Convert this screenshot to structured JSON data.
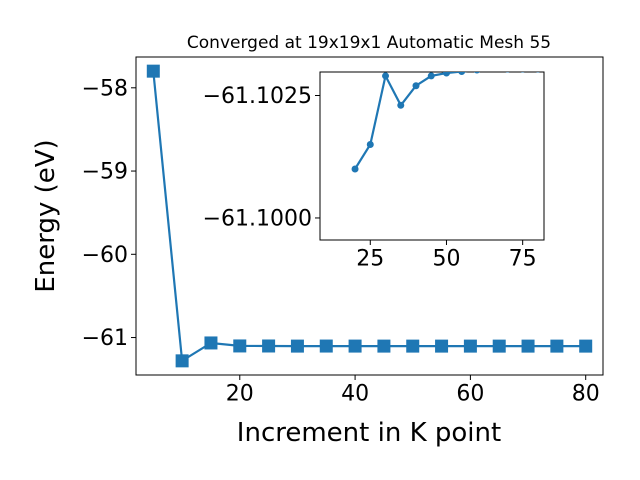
{
  "chart_data": [
    {
      "type": "line",
      "title": "Converged at 19x19x1 Automatic Mesh 55",
      "xlabel": "Increment in K point",
      "ylabel": "Energy (eV)",
      "xlim": [
        2,
        83
      ],
      "ylim": [
        -61.45,
        -57.63
      ],
      "xticks": [
        "20",
        "40",
        "60",
        "80"
      ],
      "yticks": [
        "−58",
        "−59",
        "−60",
        "−61"
      ],
      "xtick_values": [
        20,
        40,
        60,
        80
      ],
      "ytick_values": [
        -58,
        -59,
        -60,
        -61
      ],
      "grid": false,
      "marker": "square",
      "color": "#1f77b4",
      "series": [
        {
          "x": [
            5,
            10,
            15,
            20,
            25,
            30,
            35,
            40,
            45,
            50,
            55,
            60,
            65,
            70,
            75,
            80
          ],
          "values": [
            -57.8,
            -61.28,
            -61.065,
            -61.101,
            -61.1015,
            -61.1029,
            -61.1023,
            -61.1027,
            -61.1029,
            -61.10296,
            -61.10299,
            -61.10302,
            -61.10306,
            -61.10304,
            -61.10304,
            -61.10304
          ]
        }
      ]
    },
    {
      "type": "line",
      "title": "",
      "xlabel": "",
      "ylabel": "",
      "xlim": [
        8.5,
        82
      ],
      "ylim": [
        -61.09955,
        -61.10298
      ],
      "xticks": [
        "25",
        "50",
        "75"
      ],
      "yticks": [
        "−61.1025",
        "−61.1000"
      ],
      "xtick_values": [
        25,
        50,
        75
      ],
      "ytick_values": [
        -61.1025,
        -61.1
      ],
      "grid": false,
      "marker": "circle",
      "color": "#1f77b4",
      "series": [
        {
          "x": [
            20,
            25,
            30,
            35,
            40,
            45,
            50,
            55,
            60,
            65,
            70,
            75,
            80
          ],
          "values": [
            -61.101,
            -61.1015,
            -61.1029,
            -61.1023,
            -61.1027,
            -61.1029,
            -61.10296,
            -61.10299,
            -61.10302,
            -61.10306,
            -61.10304,
            -61.10304,
            -61.10304
          ]
        }
      ]
    }
  ]
}
